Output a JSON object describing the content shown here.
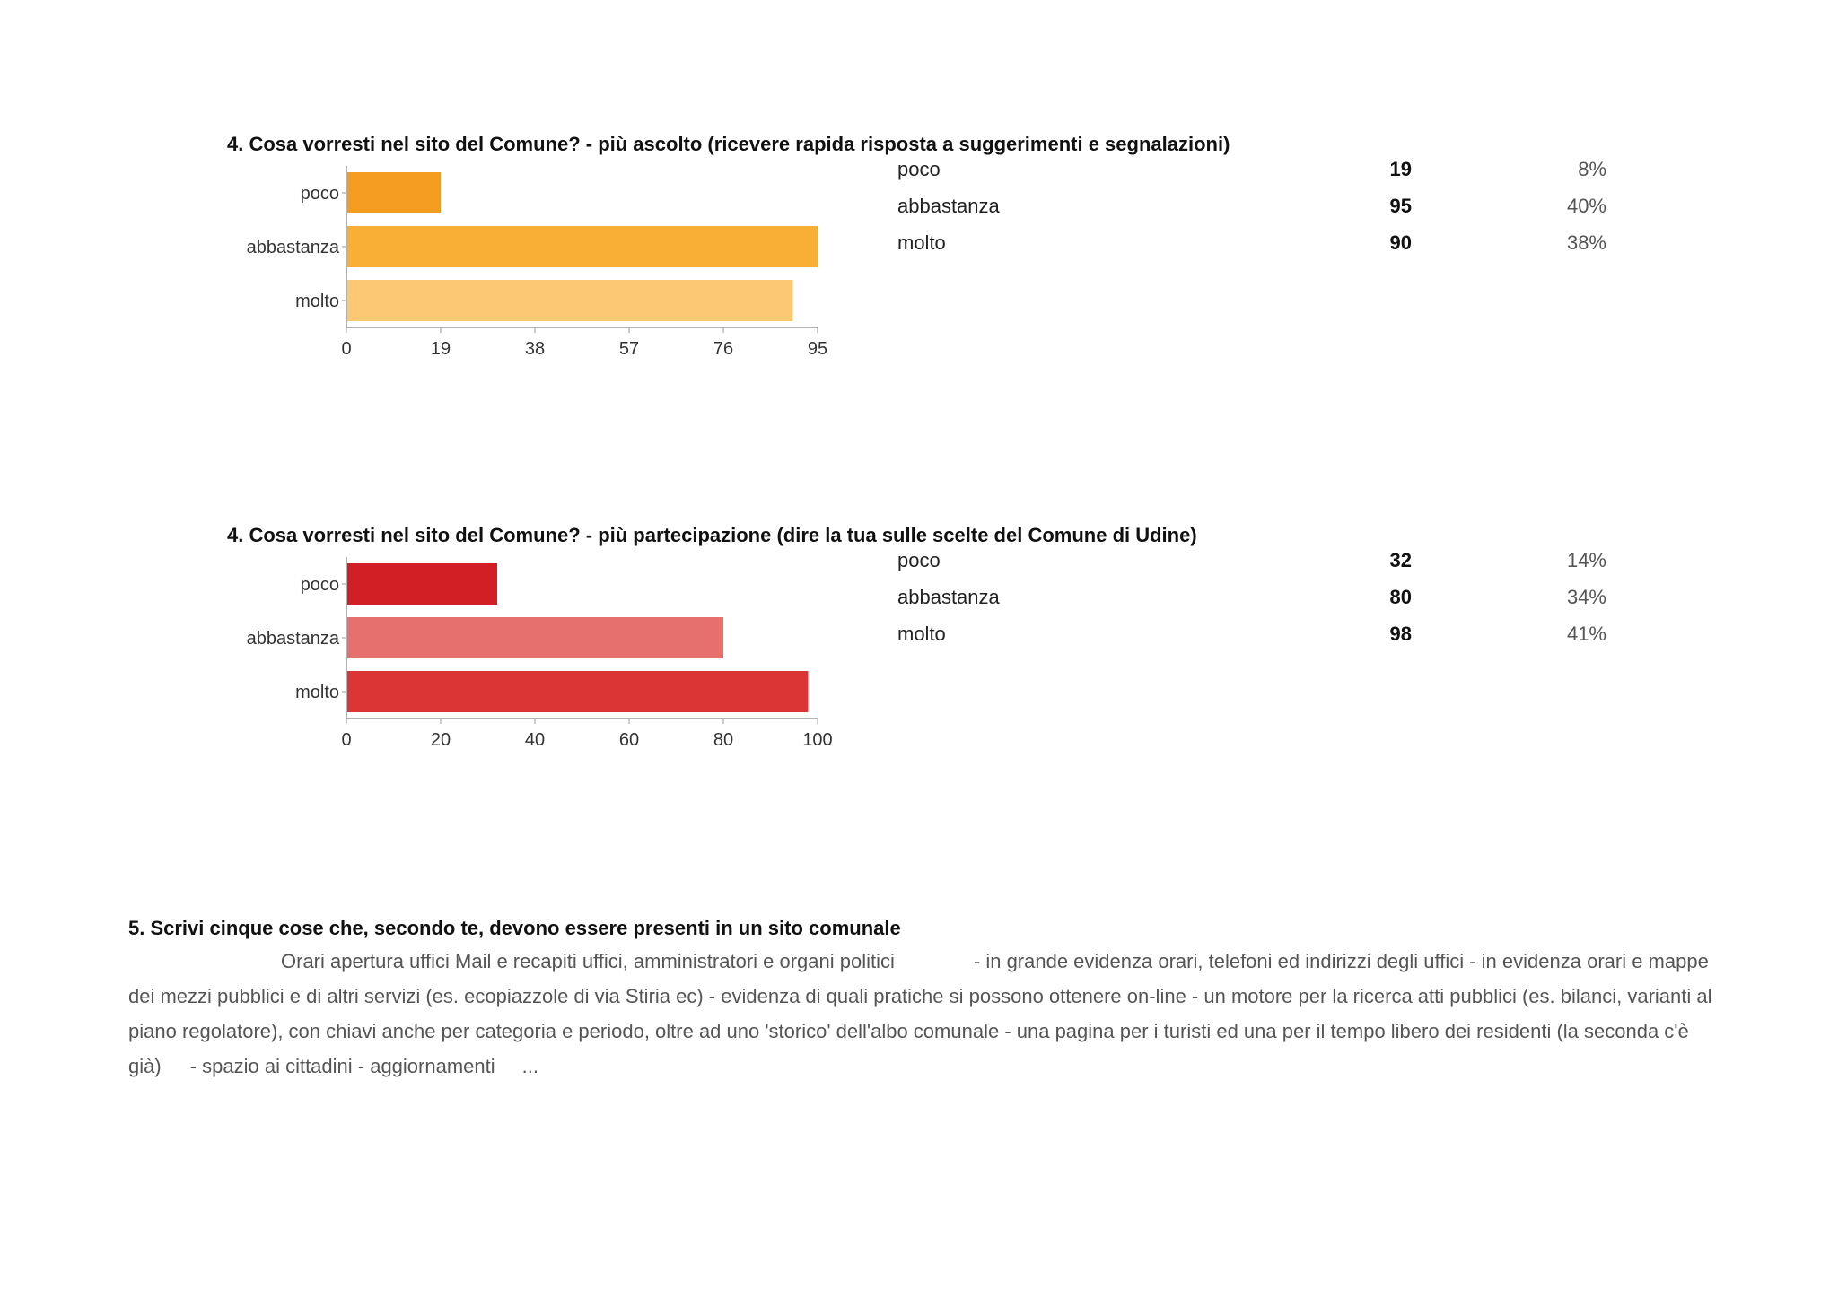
{
  "questions": [
    {
      "title": "4. Cosa vorresti nel sito del Comune? - più ascolto (ricevere rapida risposta a suggerimenti e segnalazioni)",
      "rows": [
        {
          "label": "poco",
          "count": "19",
          "pct": "8%"
        },
        {
          "label": "abbastanza",
          "count": "95",
          "pct": "40%"
        },
        {
          "label": "molto",
          "count": "90",
          "pct": "38%"
        }
      ]
    },
    {
      "title": "4. Cosa vorresti nel sito del Comune? - più partecipazione (dire la tua sulle scelte del Comune di Udine)",
      "rows": [
        {
          "label": "poco",
          "count": "32",
          "pct": "14%"
        },
        {
          "label": "abbastanza",
          "count": "80",
          "pct": "34%"
        },
        {
          "label": "molto",
          "count": "98",
          "pct": "41%"
        }
      ]
    }
  ],
  "chart_data": [
    {
      "type": "bar",
      "orientation": "horizontal",
      "categories": [
        "poco",
        "abbastanza",
        "molto"
      ],
      "values": [
        19,
        95,
        90
      ],
      "colors": [
        "#f39c1f",
        "#f9ae35",
        "#fdc874"
      ],
      "xlim": [
        0,
        95
      ],
      "xticks": [
        0,
        19,
        38,
        57,
        76,
        95
      ],
      "grid": false
    },
    {
      "type": "bar",
      "orientation": "horizontal",
      "categories": [
        "poco",
        "abbastanza",
        "molto"
      ],
      "values": [
        32,
        80,
        98
      ],
      "colors": [
        "#d21f26",
        "#e5706e",
        "#dc3535"
      ],
      "xlim": [
        0,
        100
      ],
      "xticks": [
        0,
        20,
        40,
        60,
        80,
        100
      ],
      "grid": false
    }
  ],
  "q5": {
    "title": "5. Scrivi cinque cose che, secondo te, devono essere presenti in un sito comunale",
    "answer_parts": [
      "Orari apertura uffici Mail e recapiti uffici, amministratori e organi politici",
      "- in grande evidenza orari, telefoni ed indirizzi degli uffici - in evidenza orari e mappe dei mezzi pubblici e di altri servizi (es. ecopiazzole di via Stiria ec) - evidenza di quali pratiche si possono ottenere on-line - un motore per la ricerca atti pubblici (es. bilanci, varianti al piano regolatore), con chiavi anche per categoria e periodo, oltre ad uno 'storico' dell'albo comunale - una pagina per i turisti ed una per il tempo libero dei residenti (la seconda c'è già)",
      "- spazio ai cittadini - aggiornamenti",
      "..."
    ]
  }
}
